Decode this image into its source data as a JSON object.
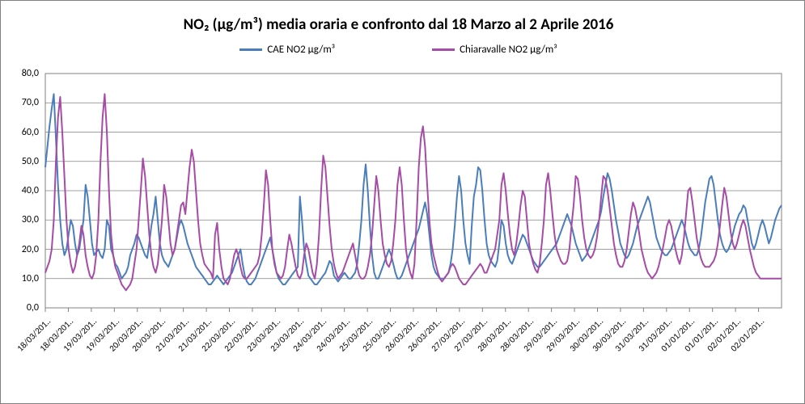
{
  "chart": {
    "type": "line",
    "title": "NO₂ (µg/m³) media oraria  e confronto dal 18 Marzo al 2 Aprile 2016",
    "title_fontsize": 19,
    "title_fontweight": "bold",
    "background_color": "#ffffff",
    "border_color": "#808080",
    "plot_border_color": "#808080",
    "grid_color": "#808080",
    "grid_width": 0.8,
    "y_axis": {
      "min": 0,
      "max": 80,
      "tick_step": 10,
      "ticks": [
        "0,0",
        "10,0",
        "20,0",
        "30,0",
        "40,0",
        "50,0",
        "60,0",
        "70,0",
        "80,0"
      ],
      "label_fontsize": 12
    },
    "x_axis": {
      "labels": [
        "18/03/201..",
        "18/03/201..",
        "19/03/201..",
        "19/03/201..",
        "20/03/201..",
        "20/03/201..",
        "21/03/201..",
        "21/03/201..",
        "22/03/201..",
        "22/03/201..",
        "23/03/201..",
        "23/03/201..",
        "24/03/201..",
        "24/03/201..",
        "25/03/201..",
        "25/03/201..",
        "26/03/201..",
        "26/03/201..",
        "27/03/201..",
        "27/03/201..",
        "28/03/201..",
        "28/03/201..",
        "29/03/201..",
        "29/03/201..",
        "30/03/201..",
        "30/03/201..",
        "31/03/201..",
        "31/03/201..",
        "01/01/201..",
        "01/01/201..",
        "02/01/201..",
        "02/01/201.."
      ],
      "label_fontsize": 11,
      "rotation_deg": -45
    },
    "legend": {
      "items": [
        {
          "label": "CAE NO2 µg/m³",
          "color": "#4a7ebb"
        },
        {
          "label": "Chiaravalle NO2 µg/m³",
          "color": "#a64ca6"
        }
      ],
      "fontsize": 13
    },
    "series": [
      {
        "name": "CAE NO2",
        "color": "#4a7ebb",
        "line_width": 2,
        "values": [
          48,
          55,
          62,
          68,
          73,
          58,
          42,
          30,
          22,
          18,
          20,
          25,
          30,
          28,
          22,
          18,
          20,
          25,
          30,
          42,
          38,
          30,
          22,
          18,
          19,
          20,
          18,
          17,
          20,
          30,
          28,
          20,
          18,
          15,
          14,
          12,
          10,
          11,
          12,
          14,
          18,
          20,
          22,
          25,
          24,
          22,
          20,
          18,
          17,
          22,
          28,
          32,
          38,
          30,
          22,
          18,
          16,
          15,
          14,
          16,
          18,
          20,
          24,
          28,
          30,
          28,
          25,
          22,
          20,
          18,
          16,
          14,
          13,
          12,
          11,
          10,
          9,
          8,
          8,
          9,
          10,
          11,
          10,
          9,
          8,
          9,
          10,
          11,
          12,
          14,
          16,
          18,
          20,
          15,
          11,
          9,
          8,
          8,
          9,
          10,
          12,
          14,
          16,
          18,
          20,
          22,
          24,
          20,
          16,
          12,
          10,
          9,
          8,
          8,
          9,
          10,
          11,
          12,
          13,
          14,
          38,
          30,
          20,
          15,
          11,
          10,
          9,
          8,
          8,
          9,
          10,
          11,
          12,
          14,
          16,
          15,
          11,
          10,
          9,
          10,
          11,
          12,
          11,
          10,
          10,
          11,
          12,
          15,
          22,
          30,
          42,
          49,
          40,
          28,
          18,
          12,
          10,
          10,
          12,
          14,
          16,
          18,
          20,
          18,
          15,
          12,
          10,
          10,
          11,
          13,
          15,
          17,
          19,
          21,
          23,
          25,
          27,
          30,
          33,
          36,
          32,
          25,
          18,
          14,
          12,
          11,
          10,
          10,
          10,
          11,
          12,
          15,
          20,
          28,
          38,
          45,
          40,
          30,
          22,
          18,
          15,
          28,
          38,
          42,
          48,
          47,
          40,
          30,
          22,
          18,
          16,
          15,
          14,
          16,
          22,
          30,
          28,
          22,
          18,
          16,
          15,
          17,
          19,
          21,
          23,
          25,
          24,
          22,
          20,
          18,
          16,
          15,
          14,
          14,
          15,
          16,
          17,
          18,
          19,
          20,
          21,
          22,
          24,
          26,
          28,
          30,
          32,
          30,
          28,
          25,
          22,
          20,
          18,
          16,
          17,
          18,
          20,
          22,
          24,
          26,
          28,
          30,
          33,
          38,
          42,
          46,
          44,
          40,
          35,
          30,
          26,
          22,
          20,
          18,
          17,
          18,
          20,
          22,
          25,
          28,
          30,
          32,
          34,
          36,
          38,
          36,
          32,
          28,
          24,
          22,
          20,
          19,
          18,
          18,
          19,
          20,
          22,
          24,
          26,
          28,
          30,
          28,
          25,
          22,
          20,
          19,
          18,
          18,
          20,
          24,
          30,
          36,
          40,
          44,
          45,
          42,
          36,
          30,
          25,
          22,
          20,
          19,
          20,
          22,
          25,
          28,
          30,
          32,
          33,
          35,
          34,
          30,
          26,
          22,
          20,
          22,
          25,
          28,
          30,
          28,
          25,
          22,
          24,
          27,
          30,
          32,
          34,
          35
        ]
      },
      {
        "name": "Chiaravalle NO2",
        "color": "#a64ca6",
        "line_width": 2,
        "values": [
          12,
          14,
          16,
          20,
          30,
          50,
          65,
          72,
          60,
          45,
          30,
          20,
          15,
          12,
          14,
          18,
          22,
          28,
          25,
          18,
          14,
          11,
          10,
          12,
          18,
          30,
          50,
          65,
          73,
          60,
          40,
          25,
          18,
          14,
          12,
          10,
          8,
          7,
          6,
          7,
          8,
          10,
          15,
          20,
          30,
          40,
          51,
          45,
          35,
          25,
          18,
          14,
          12,
          15,
          22,
          30,
          42,
          38,
          30,
          22,
          18,
          20,
          25,
          30,
          35,
          36,
          32,
          40,
          48,
          54,
          50,
          40,
          30,
          22,
          18,
          15,
          14,
          13,
          12,
          10,
          25,
          29,
          20,
          14,
          10,
          9,
          8,
          10,
          14,
          18,
          20,
          18,
          14,
          11,
          10,
          10,
          11,
          12,
          13,
          14,
          15,
          18,
          25,
          35,
          47,
          42,
          30,
          20,
          15,
          12,
          11,
          10,
          11,
          14,
          20,
          25,
          22,
          18,
          14,
          11,
          10,
          12,
          18,
          22,
          20,
          16,
          12,
          10,
          15,
          25,
          40,
          52,
          48,
          38,
          28,
          20,
          15,
          12,
          10,
          11,
          12,
          14,
          16,
          18,
          20,
          22,
          18,
          14,
          11,
          10,
          10,
          11,
          14,
          18,
          25,
          35,
          45,
          40,
          30,
          22,
          18,
          15,
          14,
          16,
          22,
          30,
          42,
          48,
          42,
          30,
          20,
          15,
          12,
          10,
          15,
          30,
          48,
          58,
          62,
          55,
          42,
          30,
          22,
          18,
          15,
          12,
          10,
          9,
          10,
          11,
          12,
          14,
          15,
          14,
          12,
          10,
          9,
          8,
          8,
          9,
          10,
          11,
          12,
          13,
          14,
          15,
          14,
          12,
          12,
          14,
          16,
          18,
          20,
          25,
          30,
          42,
          46,
          40,
          32,
          25,
          20,
          18,
          22,
          28,
          35,
          40,
          38,
          30,
          22,
          18,
          15,
          13,
          12,
          15,
          22,
          30,
          42,
          46,
          40,
          32,
          25,
          20,
          18,
          16,
          15,
          15,
          16,
          20,
          28,
          35,
          45,
          44,
          38,
          30,
          24,
          20,
          18,
          17,
          18,
          20,
          24,
          30,
          38,
          45,
          44,
          40,
          34,
          28,
          22,
          18,
          15,
          14,
          14,
          16,
          20,
          26,
          32,
          36,
          34,
          30,
          25,
          20,
          17,
          14,
          12,
          11,
          10,
          11,
          12,
          14,
          17,
          20,
          24,
          28,
          30,
          28,
          24,
          20,
          17,
          15,
          18,
          24,
          32,
          40,
          41,
          36,
          30,
          24,
          20,
          17,
          15,
          14,
          14,
          14,
          15,
          16,
          18,
          22,
          28,
          35,
          41,
          38,
          32,
          26,
          22,
          20,
          22,
          25,
          28,
          30,
          28,
          24,
          20,
          17,
          14,
          12,
          11,
          10,
          10,
          10,
          10,
          10,
          10,
          10,
          10,
          10,
          10,
          10
        ]
      }
    ],
    "n_points": 348
  }
}
